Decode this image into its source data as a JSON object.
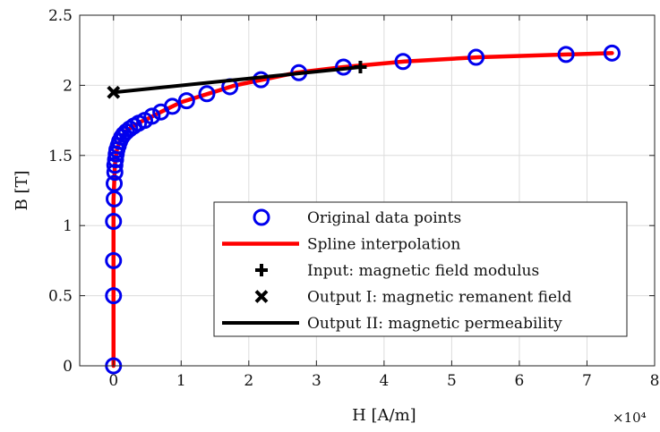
{
  "chart_data": {
    "type": "line",
    "title": "",
    "xlabel": "H [A/m]",
    "ylabel": "B [T]",
    "x_exponent_label": "×10⁴",
    "xlim": [
      -0.5,
      8
    ],
    "ylim": [
      0,
      2.5
    ],
    "x_ticks": [
      0,
      1,
      2,
      3,
      4,
      5,
      6,
      7,
      8
    ],
    "x_tick_labels": [
      "0",
      "1",
      "2",
      "3",
      "4",
      "5",
      "6",
      "7",
      "8"
    ],
    "y_ticks": [
      0,
      0.5,
      1,
      1.5,
      2,
      2.5
    ],
    "y_tick_labels": [
      "0",
      "0.5",
      "1",
      "1.5",
      "2",
      "2.5"
    ],
    "grid": true,
    "legend_position": "lower-right",
    "series": [
      {
        "name": "Original data points",
        "kind": "markers",
        "marker": "circle",
        "color": "#0000ee",
        "x": [
          0,
          0,
          0,
          0,
          0.01,
          0.01,
          0.02,
          0.02,
          0.03,
          0.04,
          0.05,
          0.07,
          0.09,
          0.12,
          0.15,
          0.19,
          0.24,
          0.3,
          0.37,
          0.46,
          0.57,
          0.7,
          0.87,
          1.08,
          1.38,
          1.72,
          2.18,
          2.74,
          3.4,
          4.28,
          5.36,
          6.69,
          7.37
        ],
        "y": [
          0,
          0.5,
          0.75,
          1.03,
          1.19,
          1.3,
          1.38,
          1.43,
          1.47,
          1.51,
          1.54,
          1.57,
          1.6,
          1.63,
          1.65,
          1.67,
          1.69,
          1.71,
          1.73,
          1.75,
          1.78,
          1.81,
          1.85,
          1.89,
          1.94,
          1.99,
          2.04,
          2.09,
          2.13,
          2.17,
          2.2,
          2.22,
          2.23
        ]
      },
      {
        "name": "Spline interpolation",
        "kind": "line",
        "color": "#ff0000",
        "x": [
          0,
          0,
          0,
          0.01,
          0.02,
          0.03,
          0.05,
          0.07,
          0.1,
          0.15,
          0.2,
          0.3,
          0.4,
          0.5,
          0.7,
          1.0,
          1.4,
          1.8,
          2.2,
          2.7,
          3.4,
          4.3,
          5.4,
          6.7,
          7.37
        ],
        "y": [
          0,
          0.75,
          1.19,
          1.3,
          1.43,
          1.47,
          1.54,
          1.57,
          1.61,
          1.65,
          1.68,
          1.71,
          1.74,
          1.76,
          1.81,
          1.88,
          1.94,
          2.0,
          2.04,
          2.09,
          2.13,
          2.17,
          2.2,
          2.22,
          2.23
        ]
      },
      {
        "name": "Input: magnetic field modulus",
        "kind": "marker",
        "marker": "plus",
        "color": "#000000",
        "x": [
          3.65
        ],
        "y": [
          2.13
        ]
      },
      {
        "name": "Output I: magnetic remanent field",
        "kind": "marker",
        "marker": "cross",
        "color": "#000000",
        "x": [
          0
        ],
        "y": [
          1.95
        ]
      },
      {
        "name": "Output II: magnetic permeability",
        "kind": "line",
        "color": "#000000",
        "x": [
          0,
          3.65
        ],
        "y": [
          1.95,
          2.13
        ]
      }
    ]
  }
}
